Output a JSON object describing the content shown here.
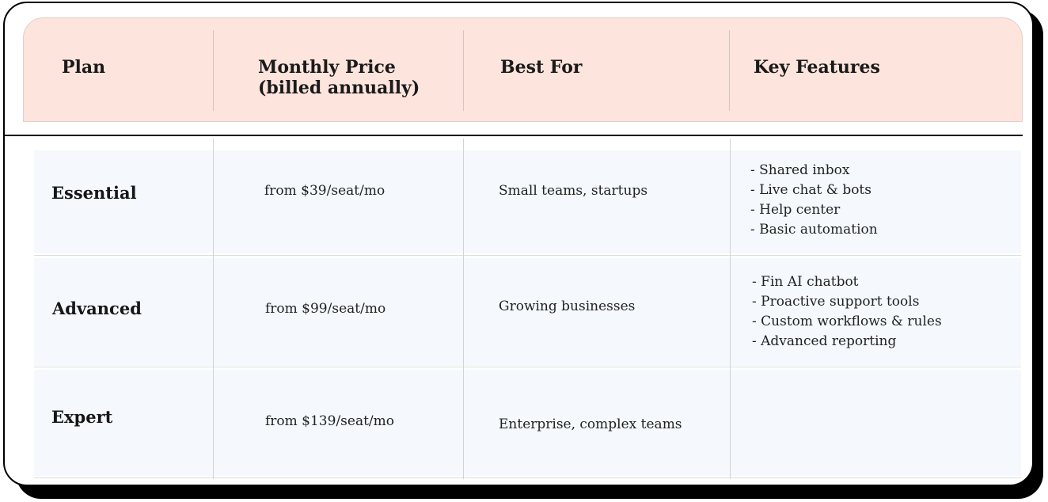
{
  "table": {
    "headers": {
      "plan": "Plan",
      "price_line1": "Monthly Price",
      "price_line2": "(billed annually)",
      "best_for": "Best For",
      "key_features": "Key Features"
    },
    "rows": [
      {
        "plan": "Essential",
        "price": "from $39/seat/mo",
        "best_for": "Small teams, startups",
        "features": [
          "- Shared inbox",
          "- Live chat & bots",
          "- Help center",
          "- Basic automation"
        ]
      },
      {
        "plan": "Advanced",
        "price": "from $99/seat/mo",
        "best_for": "Growing businesses",
        "features": [
          "- Fin AI chatbot",
          "- Proactive support tools",
          "- Custom workflows & rules",
          "- Advanced reporting"
        ]
      },
      {
        "plan": "Expert",
        "price": "from $139/seat/mo",
        "best_for": "Enterprise, complex teams",
        "features": []
      }
    ]
  },
  "colors": {
    "header_bg": "#fde4dc",
    "row_bg": "#f5f8fc",
    "border": "#000000"
  }
}
